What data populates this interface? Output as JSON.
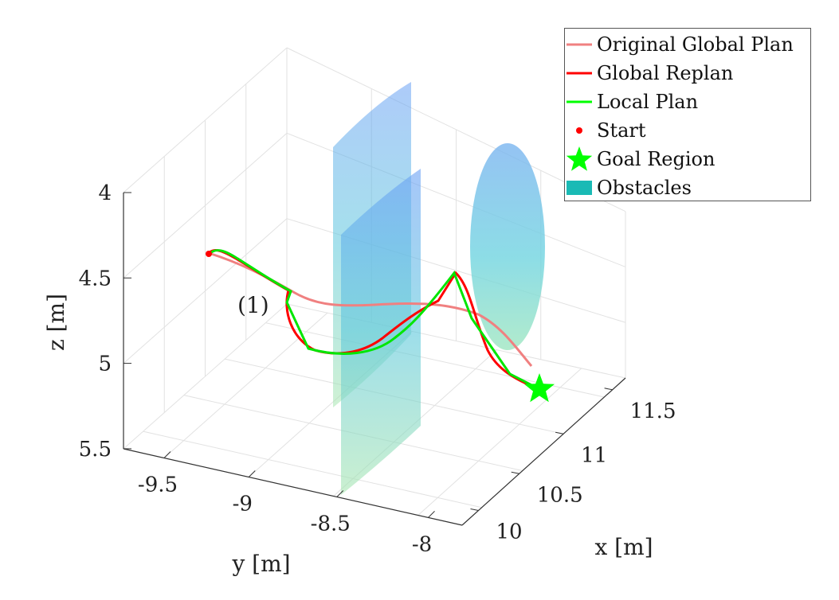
{
  "chart_data": {
    "type": "line3d",
    "xlabel": "x [m]",
    "ylabel": "y [m]",
    "zlabel": "z [m]",
    "x_ticks": [
      "10",
      "10.5",
      "11",
      "11.5"
    ],
    "y_ticks": [
      "-9.5",
      "-9",
      "-8.5",
      "-8"
    ],
    "z_ticks": [
      "4",
      "4.5",
      "5",
      "5.5"
    ],
    "z_reversed": true,
    "grid": true,
    "annotation": "(1)",
    "legend_position": "top-right",
    "legend": [
      {
        "label": "Original Global Plan",
        "color": "#f08080",
        "kind": "line"
      },
      {
        "label": "Global Replan",
        "color": "#ff0000",
        "kind": "line"
      },
      {
        "label": "Local Plan",
        "color": "#00ff00",
        "kind": "line"
      },
      {
        "label": "Start",
        "color": "#ff0000",
        "kind": "dot"
      },
      {
        "label": "Goal Region",
        "color": "#00ff00",
        "kind": "star"
      },
      {
        "label": "Obstacles",
        "color": "#1abab5",
        "kind": "patch"
      }
    ]
  }
}
